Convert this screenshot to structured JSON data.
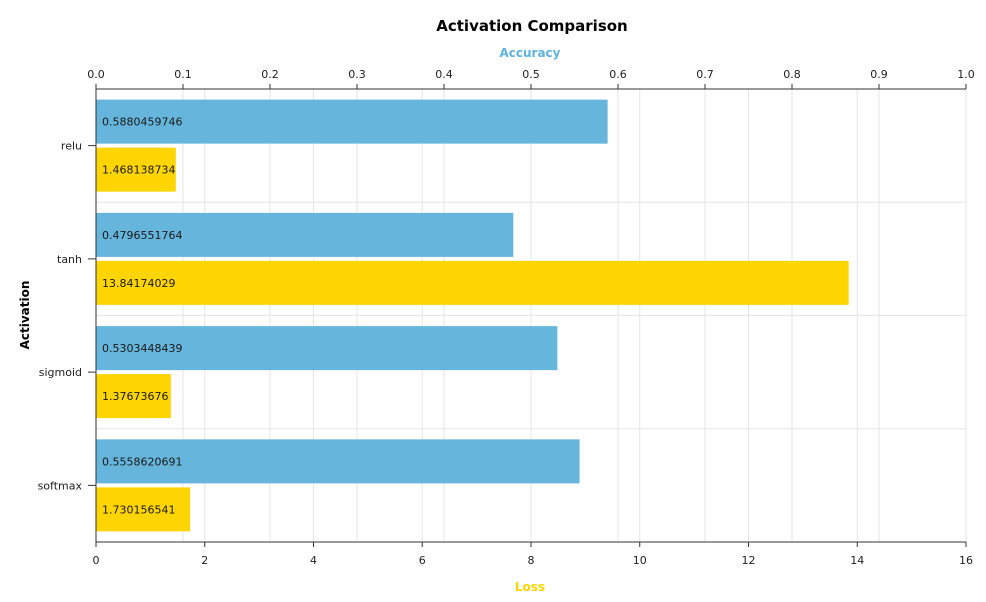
{
  "chart_data": {
    "type": "bar",
    "orientation": "horizontal",
    "title": "Activation Comparison",
    "ylabel": "Activation",
    "categories": [
      "relu",
      "tanh",
      "sigmoid",
      "softmax"
    ],
    "series": [
      {
        "name": "Accuracy",
        "axis": "top",
        "color": "#66b5dc",
        "values": [
          0.5880459746,
          0.4796551764,
          0.5303448439,
          0.5558620691
        ],
        "labels": [
          "0.5880459746",
          "0.4796551764",
          "0.5303448439",
          "0.5558620691"
        ]
      },
      {
        "name": "Loss",
        "axis": "bottom",
        "color": "#ffd500",
        "values": [
          1.468138734,
          13.84174029,
          1.37673676,
          1.730156541
        ],
        "labels": [
          "1.468138734",
          "13.84174029",
          "1.37673676",
          "1.730156541"
        ]
      }
    ],
    "top_axis": {
      "title": "Accuracy",
      "title_color": "#5fb3dd",
      "range": [
        0,
        1.0
      ],
      "ticks": [
        "0.0",
        "0.1",
        "0.2",
        "0.3",
        "0.4",
        "0.5",
        "0.6",
        "0.7",
        "0.8",
        "0.9",
        "1.0"
      ]
    },
    "bottom_axis": {
      "title": "Loss",
      "title_color": "#ffd500",
      "range": [
        0,
        16
      ],
      "ticks": [
        "0",
        "2",
        "4",
        "6",
        "8",
        "10",
        "12",
        "14",
        "16"
      ]
    },
    "grid": true
  }
}
